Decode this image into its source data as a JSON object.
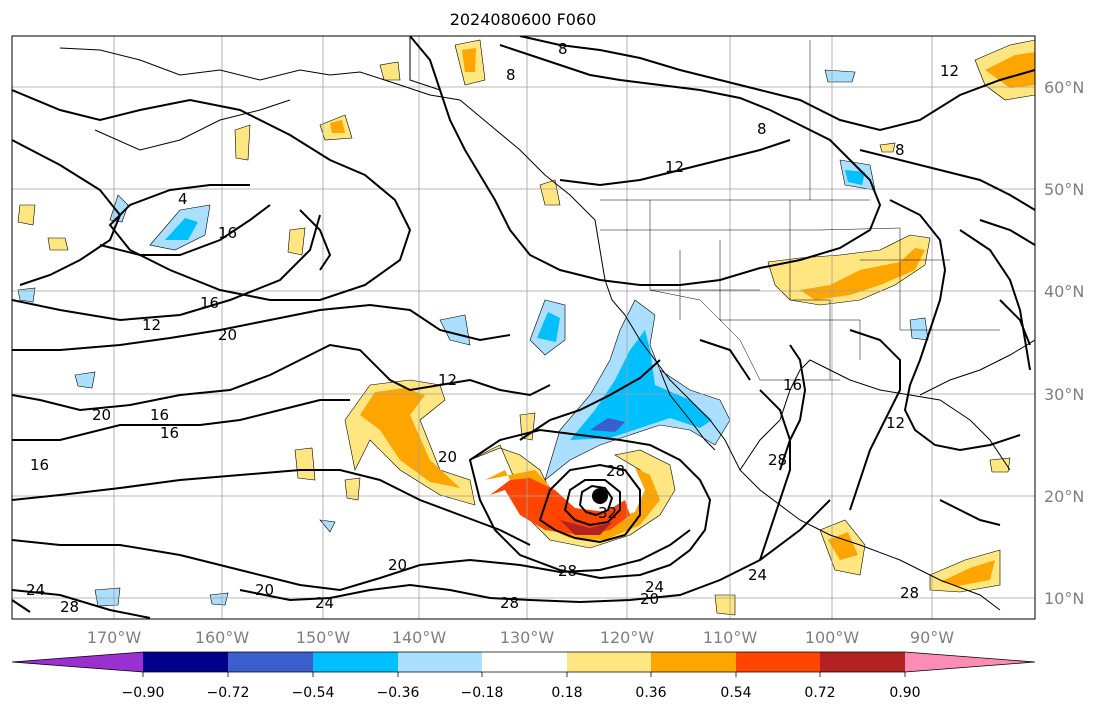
{
  "title": "2024080600 F060",
  "longitude_labels": [
    "170°W",
    "160°W",
    "150°W",
    "140°W",
    "130°W",
    "120°W",
    "110°W",
    "100°W",
    "90°W"
  ],
  "latitude_labels": [
    "60°N",
    "50°N",
    "40°N",
    "30°N",
    "20°N",
    "10°N"
  ],
  "contour_labels": [
    "8",
    "8",
    "8",
    "8",
    "12",
    "12",
    "12",
    "12",
    "12",
    "16",
    "16",
    "16",
    "16",
    "16",
    "16",
    "20",
    "20",
    "20",
    "20",
    "20",
    "20",
    "24",
    "24",
    "24",
    "24",
    "28",
    "28",
    "28",
    "28",
    "28",
    "28",
    "32",
    "4"
  ],
  "colorbar": {
    "ticks": [
      "−0.90",
      "−0.72",
      "−0.54",
      "−0.36",
      "−0.18",
      "0.18",
      "0.36",
      "0.54",
      "0.72",
      "0.90"
    ],
    "colors": [
      "#9b30d0",
      "#00008b",
      "#3a5fcd",
      "#00bfff",
      "#aadfff",
      "#ffffff",
      "#ffe680",
      "#ffa500",
      "#ff4500",
      "#b22222",
      "#ff8cb4"
    ]
  }
}
